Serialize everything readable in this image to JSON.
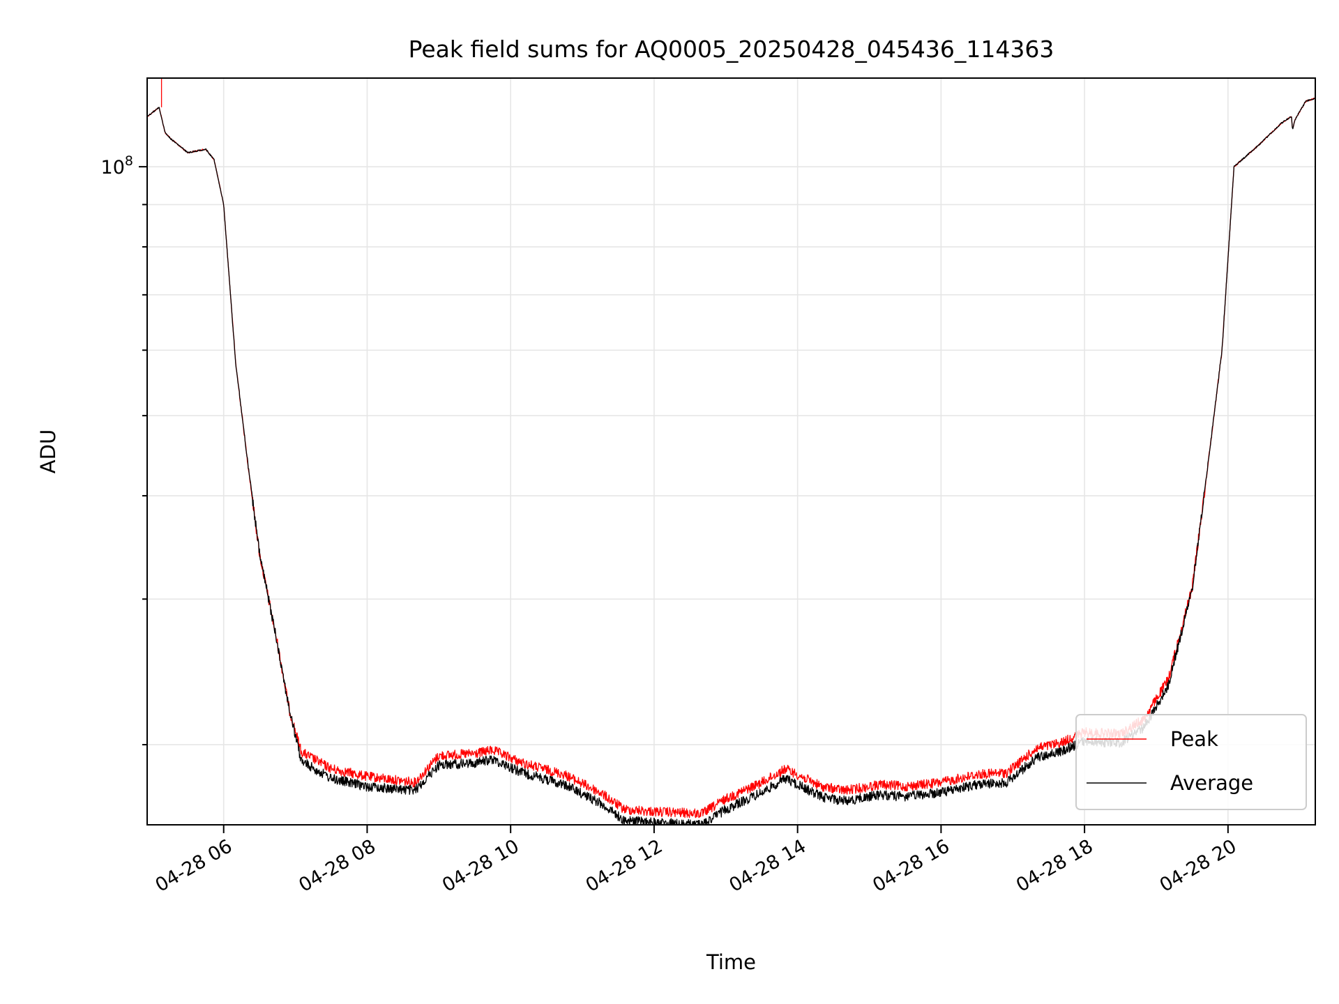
{
  "chart_data": {
    "type": "line",
    "title": "Peak field sums for AQ0005_20250428_045436_114363",
    "xlabel": "Time",
    "ylabel": "ADU",
    "y_scale": "log",
    "ylim": [
      16000000,
      128000000
    ],
    "xlim": [
      "2025-04-28 04:56",
      "2025-04-28 21:13"
    ],
    "x_ticks": [
      "2025-04-28 06:00",
      "2025-04-28 08:00",
      "2025-04-28 10:00",
      "2025-04-28 12:00",
      "2025-04-28 14:00",
      "2025-04-28 16:00",
      "2025-04-28 18:00",
      "2025-04-28 20:00"
    ],
    "x_tick_labels": [
      "04-28 06",
      "04-28 08",
      "04-28 10",
      "04-28 12",
      "04-28 14",
      "04-28 16",
      "04-28 18",
      "04-28 20"
    ],
    "y_tick_labels": [
      {
        "value": 100000000,
        "mantissa": "10",
        "exponent": "8"
      }
    ],
    "y_minor_ticks": [
      20000000,
      30000000,
      40000000,
      50000000,
      60000000,
      70000000,
      80000000,
      90000000
    ],
    "grid": true,
    "legend": {
      "position": "lower right",
      "entries": [
        "Peak",
        "Average"
      ]
    },
    "x": [
      "2025-04-28 04:56",
      "2025-04-28 05:06",
      "2025-04-28 05:11",
      "2025-04-28 05:16",
      "2025-04-28 05:30",
      "2025-04-28 05:45",
      "2025-04-28 05:52",
      "2025-04-28 06:00",
      "2025-04-28 06:10",
      "2025-04-28 06:20",
      "2025-04-28 06:30",
      "2025-04-28 06:45",
      "2025-04-28 06:55",
      "2025-04-28 07:05",
      "2025-04-28 07:30",
      "2025-04-28 08:00",
      "2025-04-28 08:40",
      "2025-04-28 09:00",
      "2025-04-28 09:30",
      "2025-04-28 09:45",
      "2025-04-28 10:10",
      "2025-04-28 10:45",
      "2025-04-28 11:15",
      "2025-04-28 11:35",
      "2025-04-28 12:00",
      "2025-04-28 12:40",
      "2025-04-28 13:00",
      "2025-04-28 13:30",
      "2025-04-28 13:50",
      "2025-04-28 14:20",
      "2025-04-28 14:40",
      "2025-04-28 15:10",
      "2025-04-28 15:30",
      "2025-04-28 16:00",
      "2025-04-28 16:30",
      "2025-04-28 16:55",
      "2025-04-28 17:20",
      "2025-04-28 17:40",
      "2025-04-28 18:00",
      "2025-04-28 18:30",
      "2025-04-28 18:50",
      "2025-04-28 19:10",
      "2025-04-28 19:30",
      "2025-04-28 19:40",
      "2025-04-28 19:55",
      "2025-04-28 20:05",
      "2025-04-28 20:25",
      "2025-04-28 20:45",
      "2025-04-28 20:53",
      "2025-04-28 20:54",
      "2025-04-28 20:56",
      "2025-04-28 21:05",
      "2025-04-28 21:13"
    ],
    "series": [
      {
        "name": "Peak",
        "color": "#ff0000",
        "values": [
          115000000,
          118000000,
          110000000,
          108000000,
          104000000,
          105000000,
          102000000,
          90000000,
          58000000,
          44000000,
          34000000,
          26500000,
          22000000,
          19600000,
          18700000,
          18300000,
          18000000,
          19400000,
          19500000,
          19700000,
          19000000,
          18400000,
          17500000,
          16700000,
          16600000,
          16500000,
          17200000,
          18000000,
          18700000,
          17800000,
          17600000,
          17900000,
          17800000,
          18000000,
          18400000,
          18500000,
          19800000,
          20100000,
          20700000,
          20600000,
          21500000,
          24000000,
          31000000,
          40000000,
          60000000,
          100000000,
          106000000,
          113000000,
          115000000,
          111000000,
          114000000,
          120000000,
          121000000
        ]
      },
      {
        "name": "Average",
        "color": "#000000",
        "values": [
          115000000,
          118000000,
          110000000,
          108000000,
          104000000,
          105000000,
          102000000,
          90000000,
          58000000,
          44000000,
          34000000,
          26500000,
          22000000,
          19100000,
          18200000,
          17800000,
          17600000,
          18900000,
          19000000,
          19200000,
          18500000,
          17900000,
          17000000,
          16200000,
          16100000,
          16000000,
          16700000,
          17500000,
          18200000,
          17300000,
          17100000,
          17400000,
          17300000,
          17500000,
          17900000,
          18000000,
          19300000,
          19600000,
          20200000,
          20100000,
          21000000,
          23600000,
          30800000,
          40000000,
          60000000,
          100000000,
          106000000,
          113000000,
          115000000,
          111000000,
          114000000,
          120000000,
          121000000
        ]
      }
    ]
  }
}
